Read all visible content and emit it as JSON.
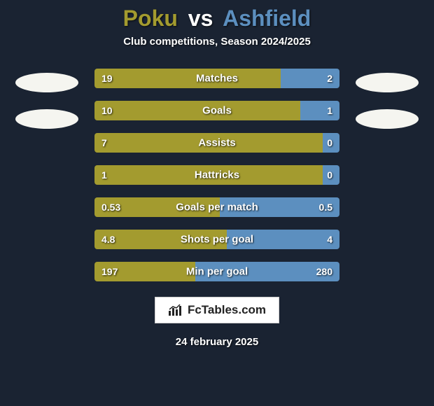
{
  "title": {
    "player1": "Poku",
    "vs": "vs",
    "player2": "Ashfield"
  },
  "subtitle": "Club competitions, Season 2024/2025",
  "colors": {
    "player1": "#a39b2f",
    "player2": "#5c8fbf",
    "ellipse": "#f5f5f0",
    "background": "#1a2332"
  },
  "stats": [
    {
      "label": "Matches",
      "v1": "19",
      "v2": "2",
      "pct1": 76
    },
    {
      "label": "Goals",
      "v1": "10",
      "v2": "1",
      "pct1": 84
    },
    {
      "label": "Assists",
      "v1": "7",
      "v2": "0",
      "pct1": 93
    },
    {
      "label": "Hattricks",
      "v1": "1",
      "v2": "0",
      "pct1": 93
    },
    {
      "label": "Goals per match",
      "v1": "0.53",
      "v2": "0.5",
      "pct1": 51
    },
    {
      "label": "Shots per goal",
      "v1": "4.8",
      "v2": "4",
      "pct1": 54
    },
    {
      "label": "Min per goal",
      "v1": "197",
      "v2": "280",
      "pct1": 41
    }
  ],
  "brand": "FcTables.com",
  "date": "24 february 2025"
}
